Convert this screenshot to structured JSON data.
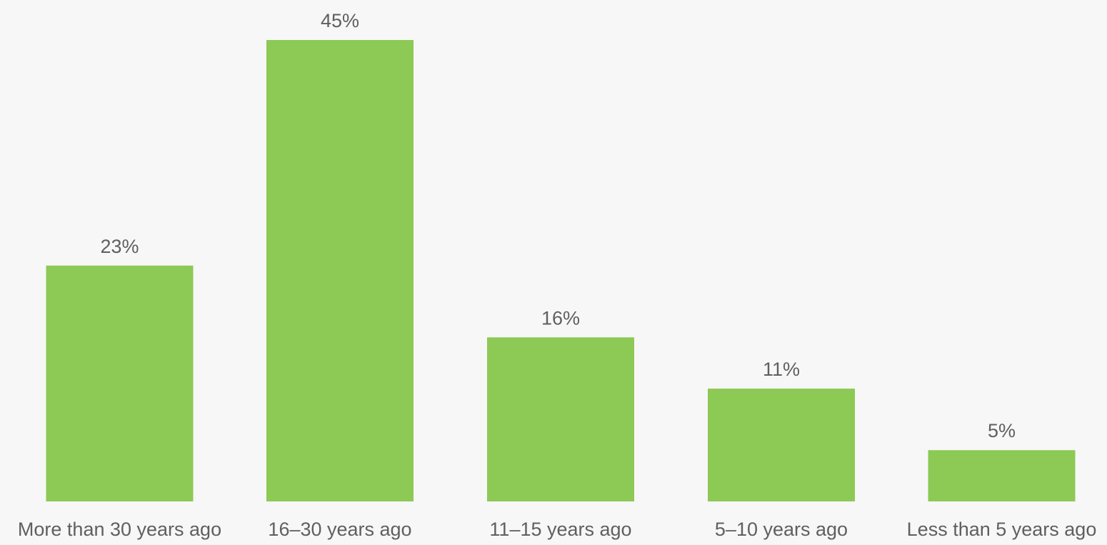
{
  "chart_data": {
    "type": "bar",
    "categories": [
      "More than 30 years ago",
      "16–30 years ago",
      "11–15 years ago",
      "5–10 years ago",
      "Less than 5 years ago"
    ],
    "values": [
      23,
      45,
      16,
      11,
      5
    ],
    "data_labels": [
      "23%",
      "45%",
      "16%",
      "11%",
      "5%"
    ],
    "title": "",
    "xlabel": "",
    "ylabel": "",
    "ylim": [
      0,
      45
    ],
    "grid": false,
    "legend": "none",
    "colors": {
      "bar": "#8dc955",
      "text": "#5f5f5f",
      "background": "#f7f7f7"
    }
  }
}
